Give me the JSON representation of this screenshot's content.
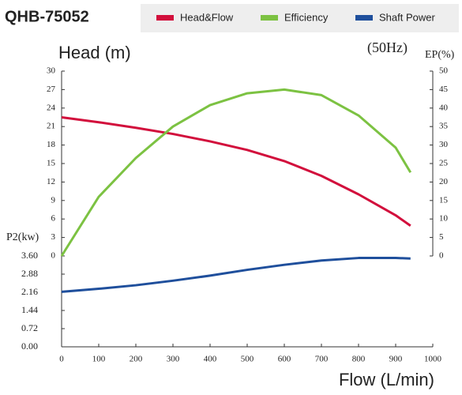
{
  "chart_data": {
    "type": "line",
    "title": "QHB-75052",
    "subtitle": "(50Hz)",
    "y_label": "Head (m)",
    "y2_label": "EP(%)",
    "y3_label": "P2(kw)",
    "x_label": "Flow (L/min)",
    "x": [
      0,
      100,
      200,
      300,
      400,
      500,
      600,
      700,
      800,
      900,
      940
    ],
    "xlim": [
      0,
      1000
    ],
    "xticks": [
      0,
      100,
      200,
      300,
      400,
      500,
      600,
      700,
      800,
      900,
      1000
    ],
    "ylim": [
      0,
      30
    ],
    "yticks": [
      0,
      3,
      6,
      9,
      12,
      15,
      18,
      21,
      24,
      27,
      30
    ],
    "y2lim": [
      0,
      50
    ],
    "y2ticks": [
      0,
      5,
      10,
      15,
      20,
      25,
      30,
      35,
      40,
      45,
      50
    ],
    "y3lim": [
      0,
      3.6
    ],
    "y3ticks": [
      {
        "value": 0,
        "label": "0.00"
      },
      0.72,
      1.44,
      2.16,
      2.88,
      {
        "value": 3.6,
        "label": "3.60"
      }
    ],
    "grid": false,
    "series": [
      {
        "name": "Head&Flow",
        "color": "#d20f3c",
        "axis": "y",
        "values": [
          22.5,
          21.7,
          20.8,
          19.8,
          18.6,
          17.2,
          15.4,
          13.0,
          10.0,
          6.6,
          4.9
        ]
      },
      {
        "name": "Efficiency",
        "color": "#7cc242",
        "axis": "y2",
        "values": [
          0,
          16,
          26.5,
          35,
          40.8,
          44,
          45,
          43.5,
          38,
          29.3,
          22.6
        ]
      },
      {
        "name": "Shaft Power",
        "color": "#1f4f9c",
        "axis": "y3",
        "values": [
          2.18,
          2.3,
          2.44,
          2.62,
          2.82,
          3.05,
          3.25,
          3.42,
          3.52,
          3.52,
          3.5
        ]
      }
    ]
  }
}
